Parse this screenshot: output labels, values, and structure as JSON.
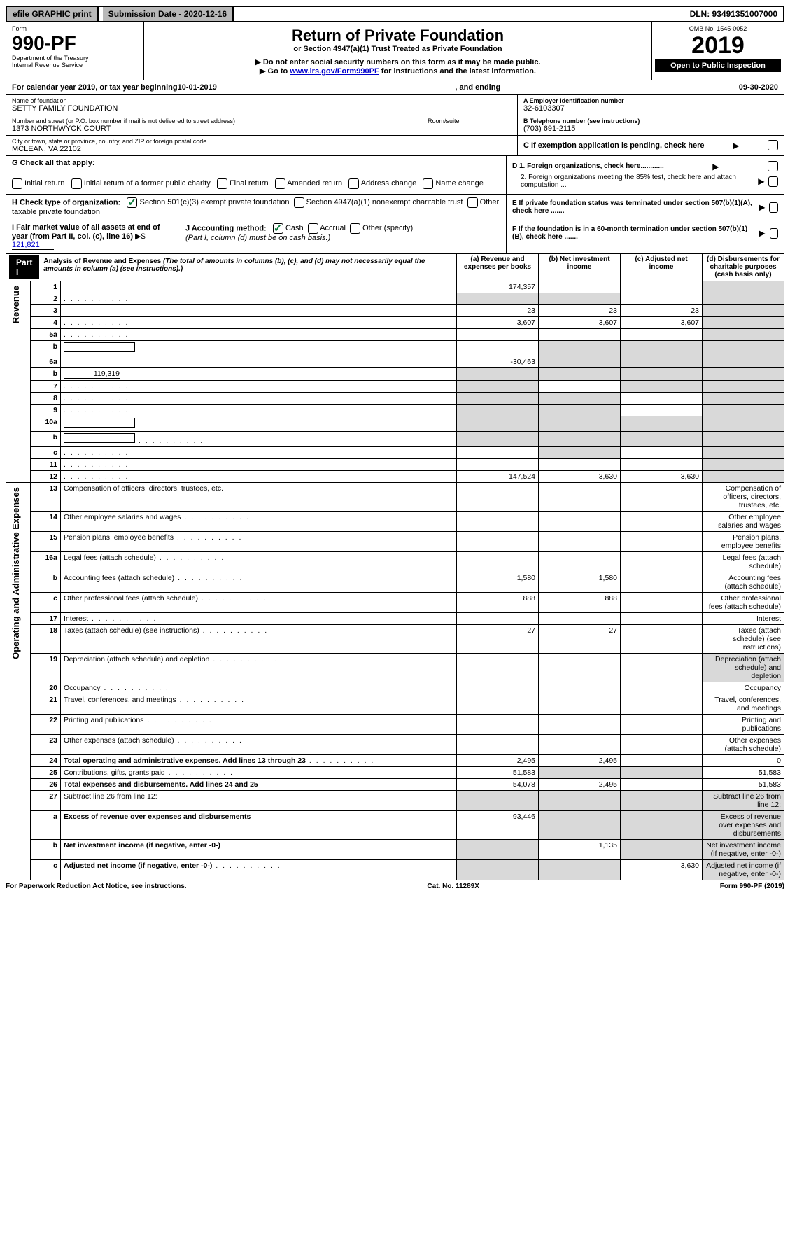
{
  "topbar": {
    "efile": "efile GRAPHIC print",
    "submission_label": "Submission Date - 2020-12-16",
    "dln": "DLN: 93491351007000"
  },
  "header": {
    "form_word": "Form",
    "form_no": "990-PF",
    "dept": "Department of the Treasury",
    "irs": "Internal Revenue Service",
    "title": "Return of Private Foundation",
    "subtitle": "or Section 4947(a)(1) Trust Treated as Private Foundation",
    "note1": "▶ Do not enter social security numbers on this form as it may be made public.",
    "note2_pre": "▶ Go to ",
    "note2_link": "www.irs.gov/Form990PF",
    "note2_post": " for instructions and the latest information.",
    "omb": "OMB No. 1545-0052",
    "year": "2019",
    "open": "Open to Public Inspection"
  },
  "calyear": {
    "text_pre": "For calendar year 2019, or tax year beginning ",
    "begin": "10-01-2019",
    "mid": ", and ending ",
    "end": "09-30-2020"
  },
  "ident": {
    "name_label": "Name of foundation",
    "name": "SETTY FAMILY FOUNDATION",
    "addr_label": "Number and street (or P.O. box number if mail is not delivered to street address)",
    "addr": "1373 NORTHWYCK COURT",
    "room_label": "Room/suite",
    "city_label": "City or town, state or province, country, and ZIP or foreign postal code",
    "city": "MCLEAN, VA  22102",
    "a_label": "A Employer identification number",
    "a_val": "32-6103307",
    "b_label": "B Telephone number (see instructions)",
    "b_val": "(703) 691-2115",
    "c_label": "C If exemption application is pending, check here",
    "d1": "D 1. Foreign organizations, check here............",
    "d2": "2. Foreign organizations meeting the 85% test, check here and attach computation ...",
    "e": "E  If private foundation status was terminated under section 507(b)(1)(A), check here .......",
    "f": "F  If the foundation is in a 60-month termination under section 507(b)(1)(B), check here .......",
    "g_label": "G Check all that apply:",
    "g_opts": [
      "Initial return",
      "Initial return of a former public charity",
      "Final return",
      "Amended return",
      "Address change",
      "Name change"
    ],
    "h_label": "H Check type of organization:",
    "h_opts": [
      "Section 501(c)(3) exempt private foundation",
      "Section 4947(a)(1) nonexempt charitable trust",
      "Other taxable private foundation"
    ],
    "i_label": "I Fair market value of all assets at end of year (from Part II, col. (c), line 16)",
    "i_val": "121,821",
    "j_label": "J Accounting method:",
    "j_opts": [
      "Cash",
      "Accrual",
      "Other (specify)"
    ],
    "j_note": "(Part I, column (d) must be on cash basis.)"
  },
  "part1": {
    "label": "Part I",
    "title": "Analysis of Revenue and Expenses",
    "note": "(The total of amounts in columns (b), (c), and (d) may not necessarily equal the amounts in column (a) (see instructions).)",
    "cols": {
      "a": "(a)   Revenue and expenses per books",
      "b": "(b)   Net investment income",
      "c": "(c)   Adjusted net income",
      "d": "(d)   Disbursements for charitable purposes (cash basis only)"
    }
  },
  "side_labels": {
    "rev": "Revenue",
    "exp": "Operating and Administrative Expenses"
  },
  "rows": [
    {
      "n": "1",
      "d": "",
      "a": "174,357",
      "b": "",
      "c": "",
      "d_shade": true
    },
    {
      "n": "2",
      "d": "",
      "a": "",
      "b": "",
      "c": "",
      "ab_shade": true,
      "d_shade": true,
      "dots": true,
      "bold_not": true
    },
    {
      "n": "3",
      "d": "",
      "a": "23",
      "b": "23",
      "c": "23",
      "d_shade": true
    },
    {
      "n": "4",
      "d": "",
      "a": "3,607",
      "b": "3,607",
      "c": "3,607",
      "d_shade": true,
      "dots": true
    },
    {
      "n": "5a",
      "d": "",
      "a": "",
      "b": "",
      "c": "",
      "d_shade": true,
      "dots": true
    },
    {
      "n": "b",
      "d": "",
      "a": "",
      "b": "",
      "c": "",
      "bcd_shade": true,
      "inline_blank": true
    },
    {
      "n": "6a",
      "d": "",
      "a": "-30,463",
      "b": "",
      "c": "",
      "bcd_shade": true
    },
    {
      "n": "b",
      "d": "",
      "inline_val": "119,319",
      "a": "",
      "b": "",
      "c": "",
      "abcd_shade": true
    },
    {
      "n": "7",
      "d": "",
      "a": "",
      "b": "",
      "c": "",
      "a_shade": true,
      "cd_shade": true,
      "dots": true
    },
    {
      "n": "8",
      "d": "",
      "a": "",
      "b": "",
      "c": "",
      "ab_shade": true,
      "d_shade": true,
      "dots": true
    },
    {
      "n": "9",
      "d": "",
      "a": "",
      "b": "",
      "c": "",
      "ab_shade": true,
      "d_shade": true,
      "dots": true
    },
    {
      "n": "10a",
      "d": "",
      "a": "",
      "b": "",
      "c": "",
      "abcd_shade": true,
      "inline_blank": true
    },
    {
      "n": "b",
      "d": "",
      "a": "",
      "b": "",
      "c": "",
      "abcd_shade": true,
      "inline_blank": true,
      "dots": true
    },
    {
      "n": "c",
      "d": "",
      "a": "",
      "b": "",
      "c": "",
      "b_shade": true,
      "d_shade": true,
      "dots": true
    },
    {
      "n": "11",
      "d": "",
      "a": "",
      "b": "",
      "c": "",
      "d_shade": true,
      "dots": true
    },
    {
      "n": "12",
      "d": "",
      "a": "147,524",
      "b": "3,630",
      "c": "3,630",
      "d_shade": true,
      "bold": true,
      "dots": true
    }
  ],
  "exp_rows": [
    {
      "n": "13",
      "d": "Compensation of officers, directors, trustees, etc."
    },
    {
      "n": "14",
      "d": "Other employee salaries and wages",
      "dots": true
    },
    {
      "n": "15",
      "d": "Pension plans, employee benefits",
      "dots": true
    },
    {
      "n": "16a",
      "d": "Legal fees (attach schedule)",
      "dots": true
    },
    {
      "n": "b",
      "d": "Accounting fees (attach schedule)",
      "a": "1,580",
      "b": "1,580",
      "dots": true
    },
    {
      "n": "c",
      "d": "Other professional fees (attach schedule)",
      "a": "888",
      "b": "888",
      "dots": true
    },
    {
      "n": "17",
      "d": "Interest",
      "dots": true
    },
    {
      "n": "18",
      "d": "Taxes (attach schedule) (see instructions)",
      "a": "27",
      "b": "27",
      "dots": true
    },
    {
      "n": "19",
      "d": "Depreciation (attach schedule) and depletion",
      "d_shade": true,
      "dots": true
    },
    {
      "n": "20",
      "d": "Occupancy",
      "dots": true
    },
    {
      "n": "21",
      "d": "Travel, conferences, and meetings",
      "dots": true
    },
    {
      "n": "22",
      "d": "Printing and publications",
      "dots": true
    },
    {
      "n": "23",
      "d": "Other expenses (attach schedule)",
      "dots": true
    },
    {
      "n": "24",
      "d": "Total operating and administrative expenses. Add lines 13 through 23",
      "a": "2,495",
      "b": "2,495",
      "c": "",
      "dval": "0",
      "bold": true,
      "dots": true
    },
    {
      "n": "25",
      "d": "Contributions, gifts, grants paid",
      "a": "51,583",
      "b": "",
      "c": "",
      "dval": "51,583",
      "bc_shade": true,
      "dots": true
    },
    {
      "n": "26",
      "d": "Total expenses and disbursements. Add lines 24 and 25",
      "a": "54,078",
      "b": "2,495",
      "c": "",
      "dval": "51,583",
      "bold": true
    },
    {
      "n": "27",
      "d": "Subtract line 26 from line 12:",
      "abcd_shade": true
    },
    {
      "n": "a",
      "d": "Excess of revenue over expenses and disbursements",
      "a": "93,446",
      "bcd_shade": true,
      "bold": true
    },
    {
      "n": "b",
      "d": "Net investment income (if negative, enter -0-)",
      "b": "1,135",
      "a_shade": true,
      "cd_shade": true,
      "bold": true
    },
    {
      "n": "c",
      "d": "Adjusted net income (if negative, enter -0-)",
      "c": "3,630",
      "ab_shade": true,
      "d_shade": true,
      "bold": true,
      "dots": true
    }
  ],
  "footer": {
    "left": "For Paperwork Reduction Act Notice, see instructions.",
    "mid": "Cat. No. 11289X",
    "right": "Form 990-PF (2019)"
  }
}
